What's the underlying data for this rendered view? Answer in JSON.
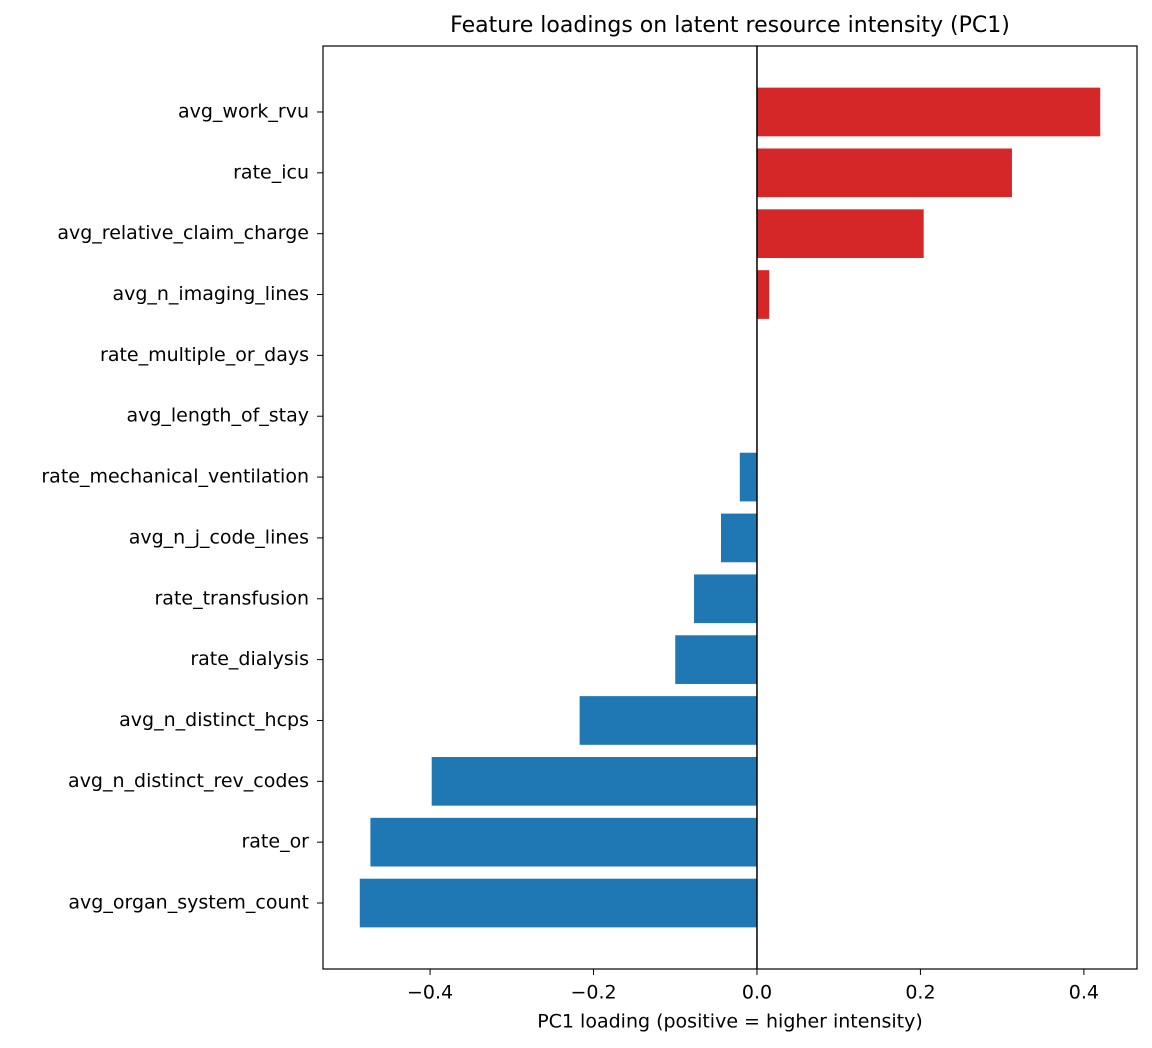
{
  "chart_data": {
    "type": "barh",
    "title": "Feature loadings on latent resource intensity (PC1)",
    "x_label": "PC1 loading (positive = higher intensity)",
    "categories": [
      "avg_work_rvu",
      "rate_icu",
      "avg_relative_claim_charge",
      "avg_n_imaging_lines",
      "rate_multiple_or_days",
      "avg_length_of_stay",
      "rate_mechanical_ventilation",
      "avg_n_j_code_lines",
      "rate_transfusion",
      "rate_dialysis",
      "avg_n_distinct_hcps",
      "avg_n_distinct_rev_codes",
      "rate_or",
      "avg_organ_system_count"
    ],
    "values": [
      0.42,
      0.312,
      0.204,
      0.015,
      0,
      0,
      -0.021,
      -0.044,
      -0.077,
      -0.1,
      -0.217,
      -0.398,
      -0.473,
      -0.486
    ],
    "colors": [
      "#d62728",
      "#d62728",
      "#d62728",
      "#d62728",
      "#d62728",
      "#d62728",
      "#1f77b4",
      "#1f77b4",
      "#1f77b4",
      "#1f77b4",
      "#1f77b4",
      "#1f77b4",
      "#1f77b4",
      "#1f77b4"
    ],
    "xlim": [
      -0.531,
      0.465
    ],
    "xticks": [
      {
        "value": -0.4,
        "label": "−0.4"
      },
      {
        "value": -0.2,
        "label": "−0.2"
      },
      {
        "value": 0,
        "label": "0.0"
      },
      0.2,
      0.4
    ],
    "grid": false
  }
}
